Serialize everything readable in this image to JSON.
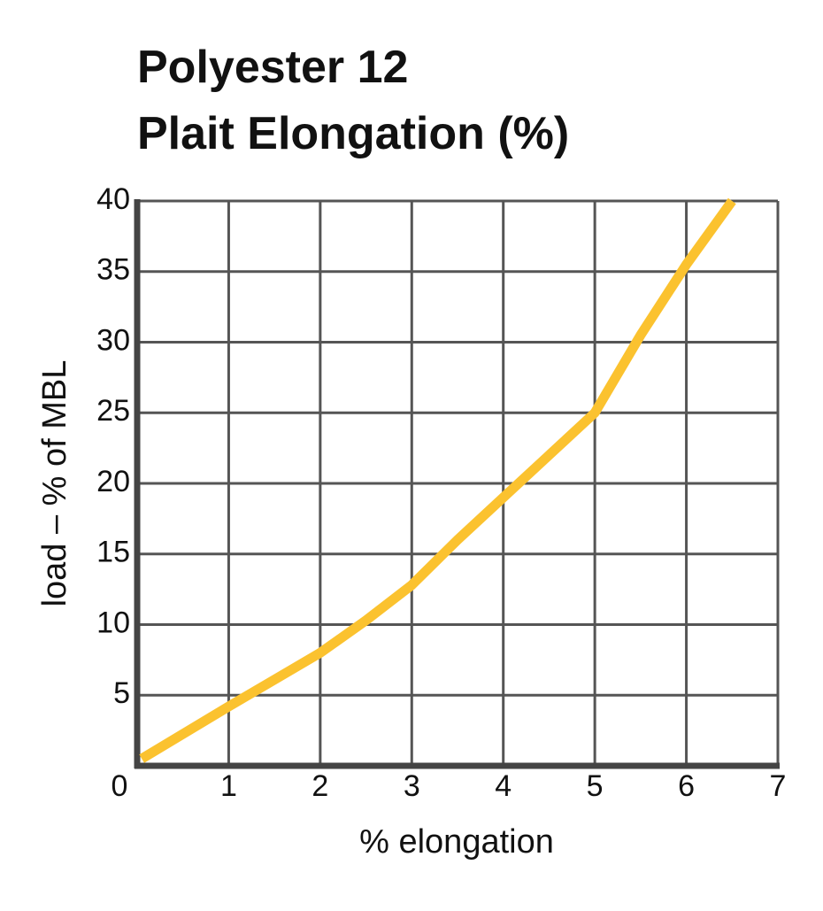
{
  "chart_data": {
    "type": "line",
    "title": "Polyester 12",
    "subtitle": "Plait Elongation (%)",
    "x_label": "% elongation",
    "y_label": "load – % of MBL",
    "x": [
      0.05,
      1,
      2,
      2.5,
      3,
      3.5,
      4,
      4.5,
      5,
      5.5,
      6,
      6.5
    ],
    "series": [
      {
        "color": "#fbc22f",
        "values": [
          0.5,
          4.2,
          8,
          10.3,
          12.8,
          16,
          19,
          22,
          25,
          30.5,
          35.5,
          40
        ]
      }
    ],
    "xlim": [
      0,
      7
    ],
    "ylim": [
      0,
      40
    ],
    "xticks": [
      0,
      1,
      2,
      3,
      4,
      5,
      6,
      7
    ],
    "yticks": [
      5,
      10,
      15,
      20,
      25,
      30,
      35,
      40
    ],
    "grid": true
  }
}
